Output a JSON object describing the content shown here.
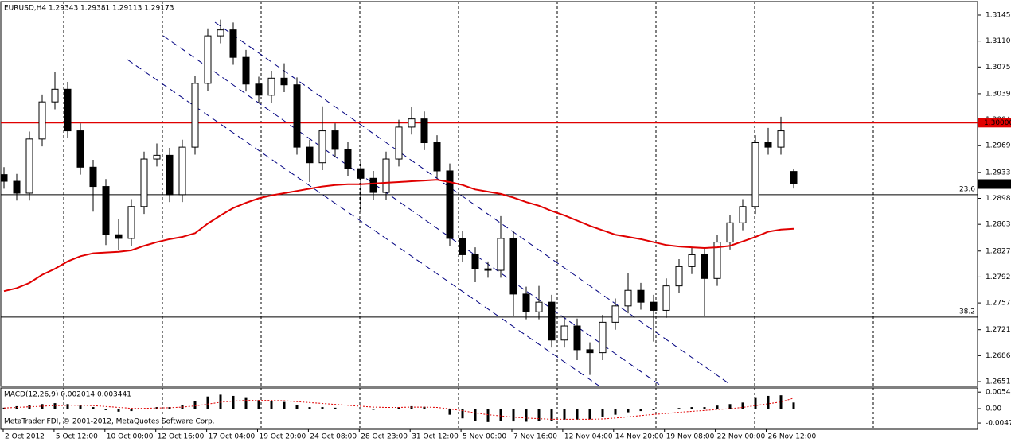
{
  "chart_data": {
    "type": "candlestick",
    "title": "EURUSD,H4  1.29343 1.29381 1.29113 1.29173",
    "watermark": "MetaTrader FDI, © 2001-2012, MetaQuotes Software Corp.",
    "up_color": "#ffffff",
    "down_color": "#000000",
    "edge_color": "#000000",
    "open": [
      1.293,
      1.2921,
      1.2905,
      1.2978,
      1.3028,
      1.3045,
      1.2989,
      1.294,
      1.2914,
      1.2849,
      1.2844,
      1.2887,
      1.2951,
      1.2956,
      1.2903,
      1.2967,
      1.3053,
      1.3117,
      1.3125,
      1.3088,
      1.3052,
      1.3037,
      1.306,
      1.3051,
      1.2967,
      1.2946,
      1.2989,
      1.2964,
      1.2938,
      1.2925,
      1.2906,
      1.2951,
      1.2994,
      1.3005,
      1.2973,
      1.2935,
      1.2844,
      1.2822,
      1.2803,
      1.2801,
      1.2844,
      1.2769,
      1.2745,
      1.2758,
      1.2707,
      1.2726,
      1.2694,
      1.269,
      1.2731,
      1.2753,
      1.2774,
      1.2758,
      1.2747,
      1.278,
      1.2806,
      1.2822,
      1.279,
      1.2839,
      1.2865,
      1.2887,
      1.2973,
      1.2967,
      1.29343
    ],
    "high": [
      1.294,
      1.2931,
      1.2988,
      1.3038,
      1.3068,
      1.3055,
      1.2999,
      1.295,
      1.2924,
      1.287,
      1.2897,
      1.2961,
      1.2972,
      1.2966,
      1.2977,
      1.3063,
      1.3127,
      1.3139,
      1.3135,
      1.3098,
      1.3062,
      1.307,
      1.308,
      1.3061,
      1.2977,
      1.3022,
      1.2999,
      1.2974,
      1.2948,
      1.2935,
      1.2961,
      1.3004,
      1.3021,
      1.3015,
      1.2983,
      1.2945,
      1.2854,
      1.2832,
      1.2813,
      1.2874,
      1.2854,
      1.2779,
      1.278,
      1.2768,
      1.2736,
      1.2736,
      1.2704,
      1.2741,
      1.2763,
      1.2797,
      1.2784,
      1.2768,
      1.279,
      1.2816,
      1.2832,
      1.2832,
      1.2849,
      1.2875,
      1.2897,
      1.2983,
      1.2993,
      1.3008,
      1.29381
    ],
    "low": [
      1.2911,
      1.2895,
      1.2895,
      1.2968,
      1.3018,
      1.2979,
      1.293,
      1.288,
      1.2835,
      1.2828,
      1.2834,
      1.2877,
      1.2941,
      1.2893,
      1.2893,
      1.2957,
      1.3043,
      1.3107,
      1.3078,
      1.3042,
      1.3027,
      1.3027,
      1.3041,
      1.2957,
      1.292,
      1.2936,
      1.2954,
      1.2928,
      1.288,
      1.2896,
      1.2896,
      1.2941,
      1.2984,
      1.2963,
      1.2925,
      1.2834,
      1.2812,
      1.2785,
      1.2791,
      1.2791,
      1.274,
      1.2735,
      1.2735,
      1.2697,
      1.2697,
      1.268,
      1.266,
      1.268,
      1.2721,
      1.2743,
      1.2748,
      1.2705,
      1.2737,
      1.277,
      1.2796,
      1.274,
      1.278,
      1.2829,
      1.2855,
      1.2877,
      1.2957,
      1.2957,
      1.29113
    ],
    "close": [
      1.2921,
      1.2905,
      1.2978,
      1.3028,
      1.3045,
      1.2989,
      1.294,
      1.2914,
      1.2849,
      1.2844,
      1.2887,
      1.2951,
      1.2956,
      1.2903,
      1.2967,
      1.3053,
      1.3117,
      1.3125,
      1.3088,
      1.3052,
      1.3037,
      1.306,
      1.3051,
      1.2967,
      1.2946,
      1.2989,
      1.2964,
      1.2938,
      1.2925,
      1.2906,
      1.2951,
      1.2994,
      1.3005,
      1.2973,
      1.2935,
      1.2844,
      1.2822,
      1.2803,
      1.2801,
      1.2844,
      1.2769,
      1.2745,
      1.2758,
      1.2707,
      1.2726,
      1.2694,
      1.269,
      1.2731,
      1.2753,
      1.2774,
      1.2758,
      1.2747,
      1.278,
      1.2806,
      1.2822,
      1.279,
      1.2839,
      1.2865,
      1.2887,
      1.2973,
      1.2967,
      1.2989,
      1.29173
    ],
    "ma": {
      "color": "#e00000",
      "values": [
        1.2773,
        1.2777,
        1.2784,
        1.2795,
        1.2803,
        1.2813,
        1.282,
        1.2824,
        1.2825,
        1.2826,
        1.2828,
        1.2834,
        1.2839,
        1.2843,
        1.2846,
        1.2851,
        1.2864,
        1.2875,
        1.2885,
        1.2892,
        1.2898,
        1.2902,
        1.2905,
        1.2908,
        1.2911,
        1.2914,
        1.2916,
        1.2917,
        1.2917,
        1.2918,
        1.2919,
        1.292,
        1.2921,
        1.2922,
        1.2923,
        1.292,
        1.2916,
        1.291,
        1.2907,
        1.2904,
        1.2899,
        1.2893,
        1.2888,
        1.2881,
        1.2875,
        1.2868,
        1.2861,
        1.2855,
        1.2849,
        1.2846,
        1.2843,
        1.2839,
        1.2835,
        1.2833,
        1.2832,
        1.2831,
        1.2832,
        1.2834,
        1.284,
        1.2846,
        1.2853,
        1.2856,
        1.2857
      ]
    },
    "ylim": [
      1.26446,
      1.31632
    ],
    "yticks": [
      {
        "value": 1.3145,
        "label": "1.31450"
      },
      {
        "value": 1.311,
        "label": "1.31100"
      },
      {
        "value": 1.3075,
        "label": "1.30750"
      },
      {
        "value": 1.3039,
        "label": "1.30390"
      },
      {
        "value": 1.3004,
        "label": "1.30040"
      },
      {
        "value": 1.2969,
        "label": "1.29690"
      },
      {
        "value": 1.2933,
        "label": "1.29330"
      },
      {
        "value": 1.2898,
        "label": "1.28980"
      },
      {
        "value": 1.2863,
        "label": "1.28630"
      },
      {
        "value": 1.2827,
        "label": "1.28270"
      },
      {
        "value": 1.2792,
        "label": "1.27920"
      },
      {
        "value": 1.2757,
        "label": "1.27570"
      },
      {
        "value": 1.2721,
        "label": "1.27210"
      },
      {
        "value": 1.2686,
        "label": "1.26860"
      },
      {
        "value": 1.2651,
        "label": "1.26510"
      }
    ],
    "hlines": [
      {
        "value": 1.3,
        "label": "1.30000",
        "color": "#e00000",
        "tag": "box"
      },
      {
        "value": 1.2903,
        "label": "23.6",
        "color": "#000000",
        "tag": "text"
      },
      {
        "value": 1.2738,
        "label": "38.2",
        "color": "#000000",
        "tag": "text"
      }
    ],
    "bid": {
      "value": 1.29173,
      "label": "1.29173",
      "color": "#c0c0c0"
    },
    "x_labels": [
      "2 Oct 2012",
      "5 Oct 12:00",
      "10 Oct 00:00",
      "12 Oct 16:00",
      "17 Oct 04:00",
      "19 Oct 20:00",
      "24 Oct 08:00",
      "28 Oct 23:00",
      "31 Oct 12:00",
      "5 Nov 00:00",
      "7 Nov 16:00",
      "12 Nov 04:00",
      "14 Nov 20:00",
      "19 Nov 08:00",
      "22 Nov 00:00",
      "26 Nov 12:00"
    ],
    "macd": {
      "label": "MACD(12,26,9) 0.002014 0.003441",
      "color": "#000000",
      "signal_color": "#e00000",
      "ylim": [
        -0.0068,
        0.0068
      ],
      "yticks": [
        {
          "value": 0.00544,
          "label": "0.00544"
        },
        {
          "value": 0,
          "label": "0.00"
        },
        {
          "value": -0.00472,
          "label": "-0.00472"
        }
      ],
      "values": [
        0.0003,
        0.0008,
        0.0012,
        0.0015,
        0.0018,
        0.0015,
        0.001,
        0.0005,
        -0.0005,
        -0.001,
        -0.0008,
        0.0,
        0.0005,
        0.0005,
        0.0012,
        0.0025,
        0.004,
        0.0046,
        0.0042,
        0.0035,
        0.0028,
        0.0025,
        0.0022,
        0.0012,
        0.0005,
        0.0005,
        0.0003,
        0.0,
        -0.0003,
        -0.0004,
        0.0,
        0.0005,
        0.0008,
        0.0006,
        0.0,
        -0.002,
        -0.0032,
        -0.004,
        -0.0044,
        -0.004,
        -0.0042,
        -0.0043,
        -0.004,
        -0.004,
        -0.0036,
        -0.0036,
        -0.0035,
        -0.0028,
        -0.002,
        -0.0012,
        -0.0008,
        -0.0005,
        -0.0002,
        0.0002,
        0.0005,
        0.0005,
        0.001,
        0.0015,
        0.002,
        0.0035,
        0.0042,
        0.0044,
        0.002014
      ],
      "signal": [
        0.0002,
        0.0004,
        0.0006,
        0.0008,
        0.001,
        0.0011,
        0.0011,
        0.001,
        0.0007,
        0.0004,
        0.0001,
        0.0001,
        0.0002,
        0.0003,
        0.0005,
        0.0009,
        0.0015,
        0.0021,
        0.0025,
        0.0027,
        0.0027,
        0.0027,
        0.0026,
        0.0023,
        0.002,
        0.0017,
        0.0014,
        0.0011,
        0.0008,
        0.0005,
        0.0004,
        0.0004,
        0.0005,
        0.0005,
        0.0004,
        -0.0001,
        -0.0007,
        -0.0014,
        -0.002,
        -0.0024,
        -0.0028,
        -0.0031,
        -0.0033,
        -0.0035,
        -0.0035,
        -0.0035,
        -0.0035,
        -0.0034,
        -0.0031,
        -0.0027,
        -0.0023,
        -0.0019,
        -0.0016,
        -0.0012,
        -0.0009,
        -0.0006,
        -0.0003,
        0.0,
        0.0004,
        0.001,
        0.0016,
        0.0022,
        0.003441
      ]
    }
  }
}
